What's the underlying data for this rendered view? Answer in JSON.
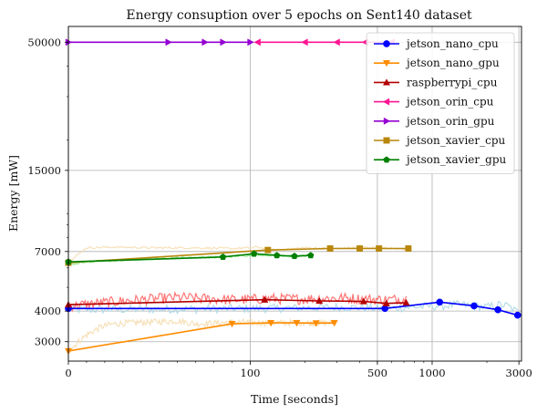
{
  "chart_data": {
    "type": "line",
    "title": "Energy consuption over 5 epochs on Sent140 dataset",
    "xlabel": "Time [seconds]",
    "ylabel": "Energy [mW]",
    "x_scale": "symlog",
    "y_scale": "log",
    "xlim": [
      0,
      3100
    ],
    "ylim": [
      2500,
      58000
    ],
    "grid": true,
    "legend_position": "top-right",
    "x_ticks": [
      {
        "value": 0,
        "label": "0"
      },
      {
        "value": 100,
        "label": "100"
      },
      {
        "value": 500,
        "label": "500"
      },
      {
        "value": 1000,
        "label": "1000"
      },
      {
        "value": 3000,
        "label": "3000"
      }
    ],
    "y_ticks": [
      {
        "value": 3000,
        "label": "3000"
      },
      {
        "value": 4000,
        "label": "4000"
      },
      {
        "value": 7000,
        "label": "7000"
      },
      {
        "value": 15000,
        "label": "15000"
      },
      {
        "value": 50000,
        "label": "50000"
      }
    ],
    "series": [
      {
        "name": "jetson_nano_cpu",
        "color": "#0000ff",
        "raw_color": "#add8e6",
        "marker": "circle",
        "epochs": {
          "x": [
            0,
            550,
            1100,
            1700,
            2300,
            2950
          ],
          "y": [
            4100,
            4100,
            4350,
            4200,
            4050,
            3850
          ]
        },
        "raw": {
          "x": [
            0,
            100,
            300,
            550,
            750,
            1100,
            1400,
            1700,
            2000,
            2300,
            2600,
            2950
          ],
          "y": [
            4050,
            4100,
            4150,
            4100,
            4150,
            4200,
            4250,
            4200,
            4150,
            4250,
            4200,
            3950
          ],
          "noise": 0.04
        }
      },
      {
        "name": "jetson_nano_gpu",
        "color": "#ff8c00",
        "raw_color": "#f5deb3",
        "marker": "triangle-down",
        "epochs": {
          "x": [
            0,
            90,
            130,
            180,
            230,
            290
          ],
          "y": [
            2750,
            3550,
            3580,
            3580,
            3570,
            3580
          ]
        },
        "raw": {
          "x": [
            0,
            10,
            18,
            25,
            40,
            60,
            70,
            90,
            130,
            180,
            230,
            290
          ],
          "y": [
            2750,
            3200,
            3450,
            3550,
            3600,
            3650,
            3550,
            3600,
            3580,
            3590,
            3570,
            3580
          ],
          "noise": 0.03
        }
      },
      {
        "name": "raspberrypi_cpu",
        "color": "#b30000",
        "raw_color": "#ff6666",
        "marker": "triangle-up",
        "epochs": {
          "x": [
            0,
            120,
            240,
            420,
            560,
            720
          ],
          "y": [
            4250,
            4450,
            4400,
            4380,
            4300,
            4330
          ]
        },
        "raw": {
          "x": [
            0,
            30,
            60,
            90,
            120,
            180,
            240,
            330,
            420,
            560,
            720
          ],
          "y": [
            4200,
            4400,
            4550,
            4450,
            4500,
            4480,
            4500,
            4520,
            4480,
            4450,
            4500
          ],
          "noise": 0.05
        }
      },
      {
        "name": "jetson_orin_cpu",
        "color": "#ff1493",
        "raw_color": "#ff69b4",
        "marker": "triangle-left",
        "epochs": {
          "x": [
            110,
            200,
            300,
            430,
            600
          ],
          "y": [
            50000,
            50000,
            50000,
            50000,
            50000
          ]
        },
        "raw": {
          "x": [
            0,
            600
          ],
          "y": [
            50000,
            50000
          ],
          "noise": 0
        }
      },
      {
        "name": "jetson_orin_gpu",
        "color": "#9400d3",
        "raw_color": "#da70d6",
        "marker": "triangle-right",
        "epochs": {
          "x": [
            0,
            55,
            75,
            85,
            100
          ],
          "y": [
            50000,
            50000,
            50000,
            50000,
            50000
          ]
        },
        "raw": {
          "x": [
            0,
            100
          ],
          "y": [
            50000,
            50000
          ],
          "noise": 0
        }
      },
      {
        "name": "jetson_xavier_cpu",
        "color": "#b8860b",
        "raw_color": "#f5deb3",
        "marker": "square",
        "epochs": {
          "x": [
            0,
            125,
            275,
            400,
            510,
            740
          ],
          "y": [
            6300,
            7100,
            7200,
            7200,
            7200,
            7200
          ]
        },
        "raw": {
          "x": [
            0,
            10,
            25,
            35,
            45,
            70,
            90,
            110,
            130,
            200,
            300,
            400,
            510,
            600,
            740
          ],
          "y": [
            6300,
            7250,
            7300,
            7280,
            7250,
            7250,
            7200,
            7300,
            7100,
            7250,
            7200,
            7300,
            7250,
            7200,
            7150
          ],
          "noise": 0.01
        }
      },
      {
        "name": "jetson_xavier_gpu",
        "color": "#008000",
        "raw_color": "#90ee90",
        "marker": "pentagon",
        "epochs": {
          "x": [
            0,
            85,
            105,
            140,
            175,
            215
          ],
          "y": [
            6350,
            6650,
            6850,
            6750,
            6700,
            6750
          ]
        },
        "raw": {
          "x": [
            0,
            10,
            20,
            30,
            40,
            60,
            85,
            105,
            140,
            175,
            215
          ],
          "y": [
            6200,
            6350,
            6400,
            6450,
            6500,
            6600,
            6650,
            6800,
            6750,
            6700,
            6750
          ],
          "noise": 0.01
        }
      }
    ]
  }
}
